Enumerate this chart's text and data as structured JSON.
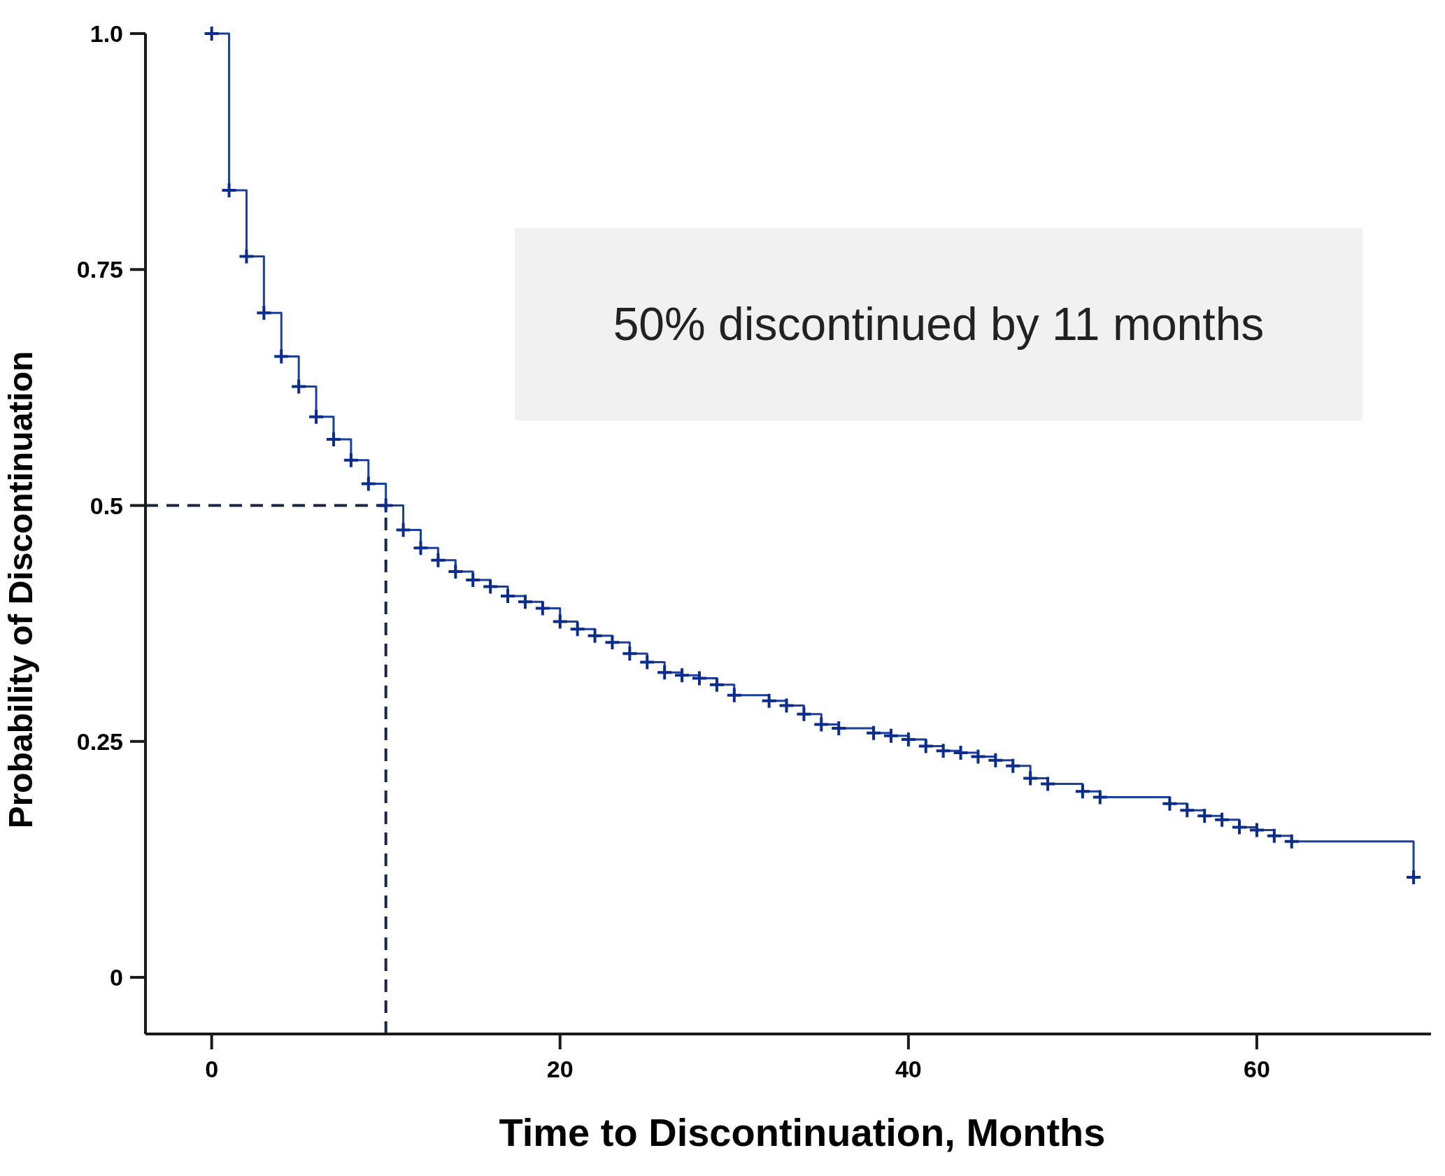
{
  "chart_data": {
    "type": "step",
    "xlabel": "Time to Discontinuation, Months",
    "ylabel": "Probability of Discontinuation",
    "annotations": [
      "50% discontinued by 11 months"
    ],
    "xlim": [
      -3.8,
      70
    ],
    "xticks": [
      0,
      20,
      40,
      60
    ],
    "ylim": [
      -0.06,
      1.0
    ],
    "yticks": [
      {
        "value": 0,
        "label": "0"
      },
      0.25,
      0.5,
      0.75,
      {
        "value": 1,
        "label": "1.0"
      }
    ],
    "marker": "cross",
    "grid": false,
    "ref_lines": [
      {
        "axis": "y",
        "value": 0.5,
        "color": "#1a2740",
        "line_style": "dashed"
      },
      {
        "axis": "x",
        "value": 10,
        "color": "#1a2740",
        "line_style": "dashed"
      }
    ],
    "series": [
      {
        "color": "#1c3f9e",
        "x": [
          0,
          1,
          2,
          3,
          4,
          5,
          6,
          7,
          8,
          9,
          10,
          11,
          12,
          13,
          14,
          15,
          16,
          17,
          18,
          19,
          20,
          21,
          22,
          23,
          24,
          25,
          26,
          27,
          28,
          29,
          30,
          32,
          33,
          34,
          35,
          36,
          38,
          39,
          40,
          41,
          42,
          43,
          44,
          45,
          46,
          47,
          48,
          50,
          51,
          55,
          56,
          57,
          58,
          59,
          60,
          61,
          62,
          69
        ],
        "values": [
          1.0,
          0.834,
          0.764,
          0.704,
          0.658,
          0.626,
          0.594,
          0.57,
          0.548,
          0.523,
          0.5,
          0.474,
          0.455,
          0.442,
          0.43,
          0.421,
          0.414,
          0.404,
          0.398,
          0.391,
          0.377,
          0.369,
          0.362,
          0.355,
          0.343,
          0.334,
          0.323,
          0.32,
          0.317,
          0.31,
          0.299,
          0.293,
          0.288,
          0.279,
          0.268,
          0.264,
          0.259,
          0.256,
          0.252,
          0.245,
          0.24,
          0.238,
          0.234,
          0.23,
          0.224,
          0.211,
          0.205,
          0.197,
          0.191,
          0.184,
          0.177,
          0.171,
          0.167,
          0.159,
          0.156,
          0.15,
          0.144,
          0.106
        ]
      }
    ]
  }
}
